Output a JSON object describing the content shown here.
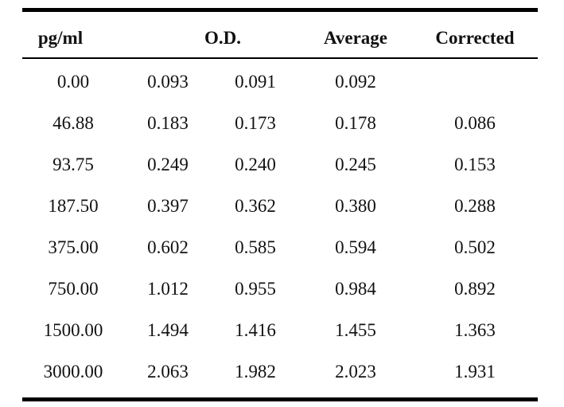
{
  "table": {
    "headers": {
      "concentration": "pg/ml",
      "od": "O.D.",
      "average": "Average",
      "corrected": "Corrected"
    },
    "rows": [
      {
        "pg": "0.00",
        "od1": "0.093",
        "od2": "0.091",
        "avg": "0.092",
        "corrected": ""
      },
      {
        "pg": "46.88",
        "od1": "0.183",
        "od2": "0.173",
        "avg": "0.178",
        "corrected": "0.086"
      },
      {
        "pg": "93.75",
        "od1": "0.249",
        "od2": "0.240",
        "avg": "0.245",
        "corrected": "0.153"
      },
      {
        "pg": "187.50",
        "od1": "0.397",
        "od2": "0.362",
        "avg": "0.380",
        "corrected": "0.288"
      },
      {
        "pg": "375.00",
        "od1": "0.602",
        "od2": "0.585",
        "avg": "0.594",
        "corrected": "0.502"
      },
      {
        "pg": "750.00",
        "od1": "1.012",
        "od2": "0.955",
        "avg": "0.984",
        "corrected": "0.892"
      },
      {
        "pg": "1500.00",
        "od1": "1.494",
        "od2": "1.416",
        "avg": "1.455",
        "corrected": "1.363"
      },
      {
        "pg": "3000.00",
        "od1": "2.063",
        "od2": "1.982",
        "avg": "2.023",
        "corrected": "1.931"
      }
    ]
  }
}
